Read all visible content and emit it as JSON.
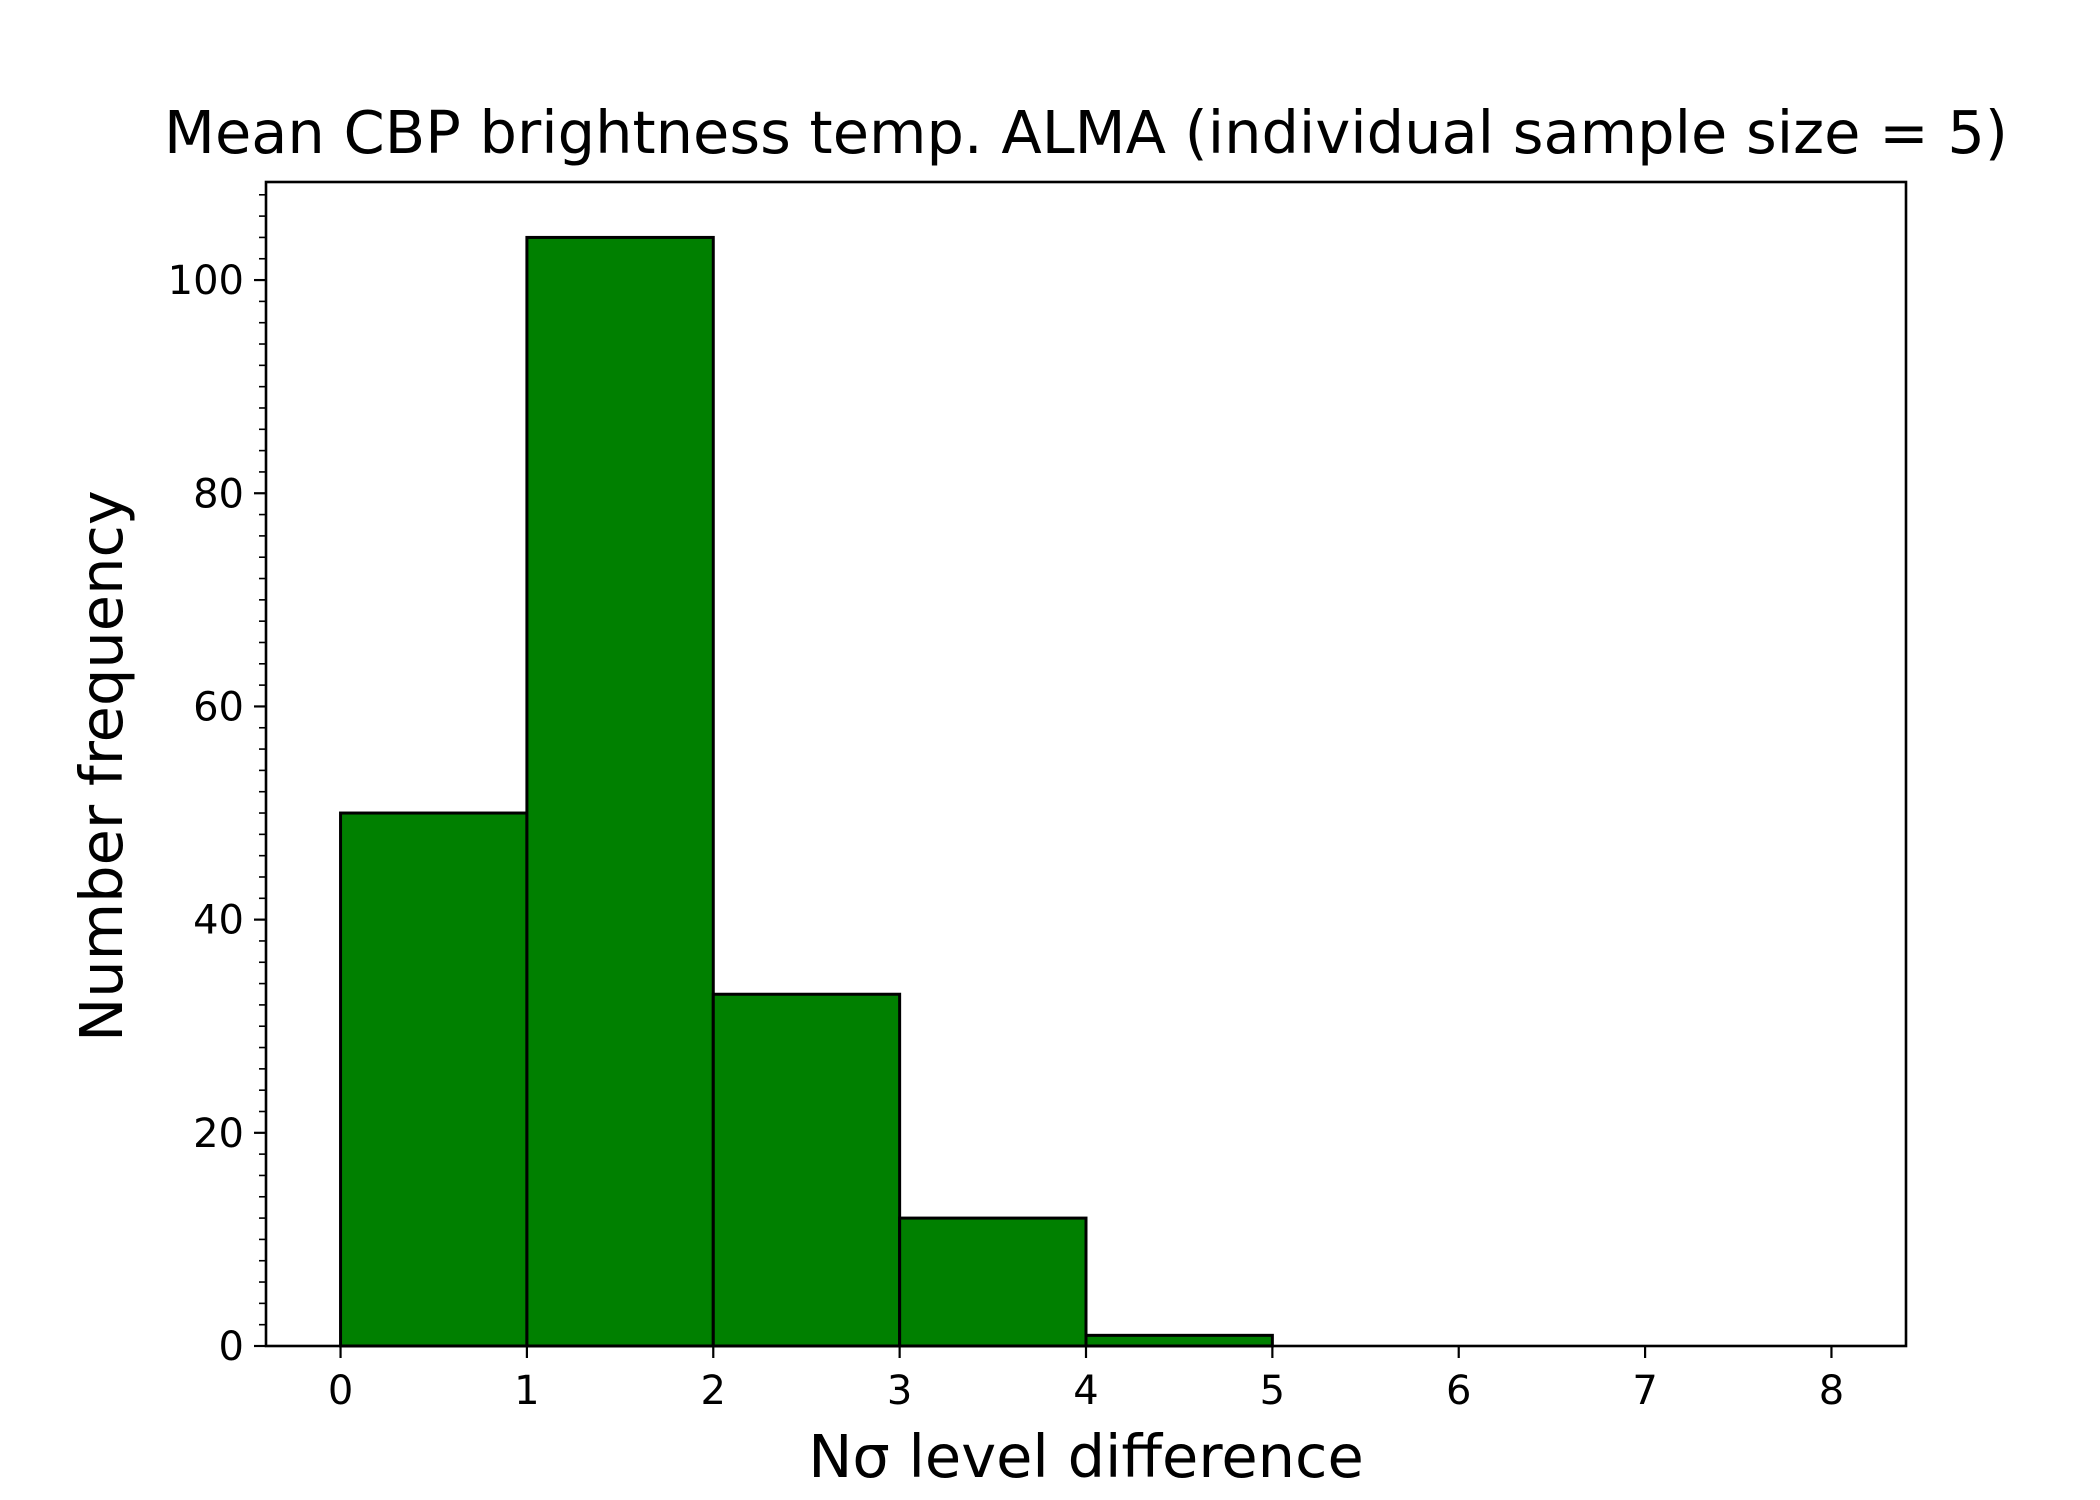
{
  "chart_data": {
    "type": "bar",
    "title": "Mean CBP brightness temp. ALMA (individual sample size = 5)",
    "xlabel": "Nσ level difference",
    "ylabel": "Number frequency",
    "bins": [
      {
        "x0": 0,
        "x1": 1,
        "value": 50
      },
      {
        "x0": 1,
        "x1": 2,
        "value": 104
      },
      {
        "x0": 2,
        "x1": 3,
        "value": 33
      },
      {
        "x0": 3,
        "x1": 4,
        "value": 12
      },
      {
        "x0": 4,
        "x1": 5,
        "value": 1
      },
      {
        "x0": 5,
        "x1": 6,
        "value": 0
      },
      {
        "x0": 6,
        "x1": 7,
        "value": 0
      },
      {
        "x0": 7,
        "x1": 8,
        "value": 0
      }
    ],
    "xlim": [
      -0.4,
      8.4
    ],
    "ylim": [
      0,
      109.2
    ],
    "xticks": [
      0,
      1,
      2,
      3,
      4,
      5,
      6,
      7,
      8
    ],
    "yticks": [
      0,
      20,
      40,
      60,
      80,
      100
    ],
    "y_minor_step": 2,
    "grid": false,
    "legend": "none",
    "colors": {
      "bar_fill": "#008000",
      "bar_edge": "#000000",
      "axes": "#000000"
    }
  }
}
